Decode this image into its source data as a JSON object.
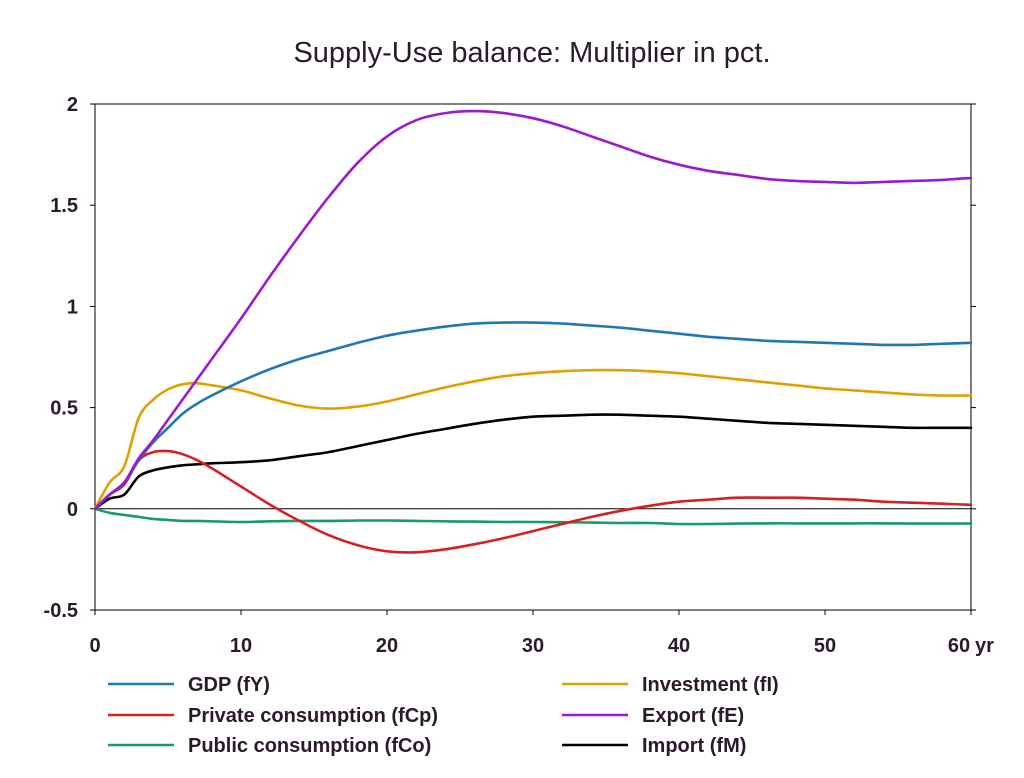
{
  "chart_data": {
    "type": "line",
    "title": "Supply-Use balance: Multiplier in pct.",
    "xlabel": "",
    "ylabel": "",
    "x_unit_label": "yr",
    "xlim": [
      0,
      60
    ],
    "ylim": [
      -0.5,
      2
    ],
    "x_ticks": [
      0,
      10,
      20,
      30,
      40,
      50,
      60
    ],
    "y_ticks": [
      -0.5,
      0,
      0.5,
      1,
      1.5,
      2
    ],
    "y_tick_labels": [
      "-0.5",
      "0",
      "0.5",
      "1",
      "1.5",
      "2"
    ],
    "grid": false,
    "zero_line": true,
    "legend_position": "bottom",
    "x": [
      0,
      1,
      2,
      3,
      4,
      5,
      6,
      7,
      8,
      10,
      12,
      14,
      16,
      18,
      20,
      22,
      24,
      26,
      28,
      30,
      32,
      34,
      36,
      38,
      40,
      42,
      44,
      46,
      48,
      50,
      52,
      54,
      56,
      58,
      60
    ],
    "series": [
      {
        "name": "GDP (fY)",
        "color": "#1f77b4",
        "values": [
          0,
          0.07,
          0.13,
          0.24,
          0.33,
          0.4,
          0.47,
          0.52,
          0.56,
          0.63,
          0.69,
          0.74,
          0.78,
          0.82,
          0.855,
          0.88,
          0.9,
          0.915,
          0.92,
          0.92,
          0.915,
          0.905,
          0.895,
          0.88,
          0.865,
          0.85,
          0.84,
          0.83,
          0.825,
          0.82,
          0.815,
          0.81,
          0.81,
          0.815,
          0.82
        ]
      },
      {
        "name": "Investment (fI)",
        "color": "#e0a000",
        "values": [
          0,
          0.13,
          0.21,
          0.45,
          0.54,
          0.59,
          0.615,
          0.62,
          0.61,
          0.585,
          0.545,
          0.51,
          0.495,
          0.505,
          0.53,
          0.565,
          0.6,
          0.63,
          0.655,
          0.67,
          0.68,
          0.685,
          0.685,
          0.68,
          0.67,
          0.655,
          0.64,
          0.625,
          0.61,
          0.595,
          0.585,
          0.575,
          0.565,
          0.56,
          0.56
        ]
      },
      {
        "name": "Private consumption (fCp)",
        "color": "#d42020",
        "values": [
          0,
          0.07,
          0.12,
          0.24,
          0.28,
          0.285,
          0.27,
          0.24,
          0.2,
          0.11,
          0.02,
          -0.06,
          -0.13,
          -0.18,
          -0.21,
          -0.215,
          -0.2,
          -0.175,
          -0.145,
          -0.11,
          -0.075,
          -0.04,
          -0.01,
          0.015,
          0.035,
          0.045,
          0.055,
          0.055,
          0.055,
          0.05,
          0.045,
          0.035,
          0.03,
          0.025,
          0.02
        ]
      },
      {
        "name": "Export (fE)",
        "color": "#9a1ad0",
        "values": [
          0,
          0.07,
          0.13,
          0.25,
          0.34,
          0.44,
          0.54,
          0.64,
          0.74,
          0.94,
          1.15,
          1.35,
          1.54,
          1.71,
          1.84,
          1.92,
          1.955,
          1.965,
          1.955,
          1.93,
          1.89,
          1.84,
          1.79,
          1.74,
          1.7,
          1.67,
          1.65,
          1.63,
          1.62,
          1.615,
          1.61,
          1.615,
          1.62,
          1.625,
          1.635
        ]
      },
      {
        "name": "Public consumption (fCo)",
        "color": "#1a9a6a",
        "values": [
          0,
          -0.02,
          -0.03,
          -0.04,
          -0.05,
          -0.055,
          -0.06,
          -0.06,
          -0.062,
          -0.065,
          -0.062,
          -0.06,
          -0.06,
          -0.058,
          -0.058,
          -0.06,
          -0.062,
          -0.063,
          -0.065,
          -0.065,
          -0.066,
          -0.068,
          -0.07,
          -0.07,
          -0.075,
          -0.075,
          -0.073,
          -0.072,
          -0.072,
          -0.072,
          -0.072,
          -0.072,
          -0.073,
          -0.073,
          -0.073
        ]
      },
      {
        "name": "Import (fM)",
        "color": "#000000",
        "values": [
          0,
          0.05,
          0.07,
          0.16,
          0.19,
          0.205,
          0.215,
          0.22,
          0.225,
          0.23,
          0.24,
          0.26,
          0.28,
          0.31,
          0.34,
          0.37,
          0.395,
          0.42,
          0.44,
          0.455,
          0.46,
          0.465,
          0.465,
          0.46,
          0.455,
          0.445,
          0.435,
          0.425,
          0.42,
          0.415,
          0.41,
          0.405,
          0.4,
          0.4,
          0.4
        ]
      }
    ],
    "legend_layout": [
      [
        "GDP (fY)",
        "Investment (fI)"
      ],
      [
        "Private consumption (fCp)",
        "Export (fE)"
      ],
      [
        "Public consumption (fCo)",
        "Import (fM)"
      ]
    ]
  }
}
